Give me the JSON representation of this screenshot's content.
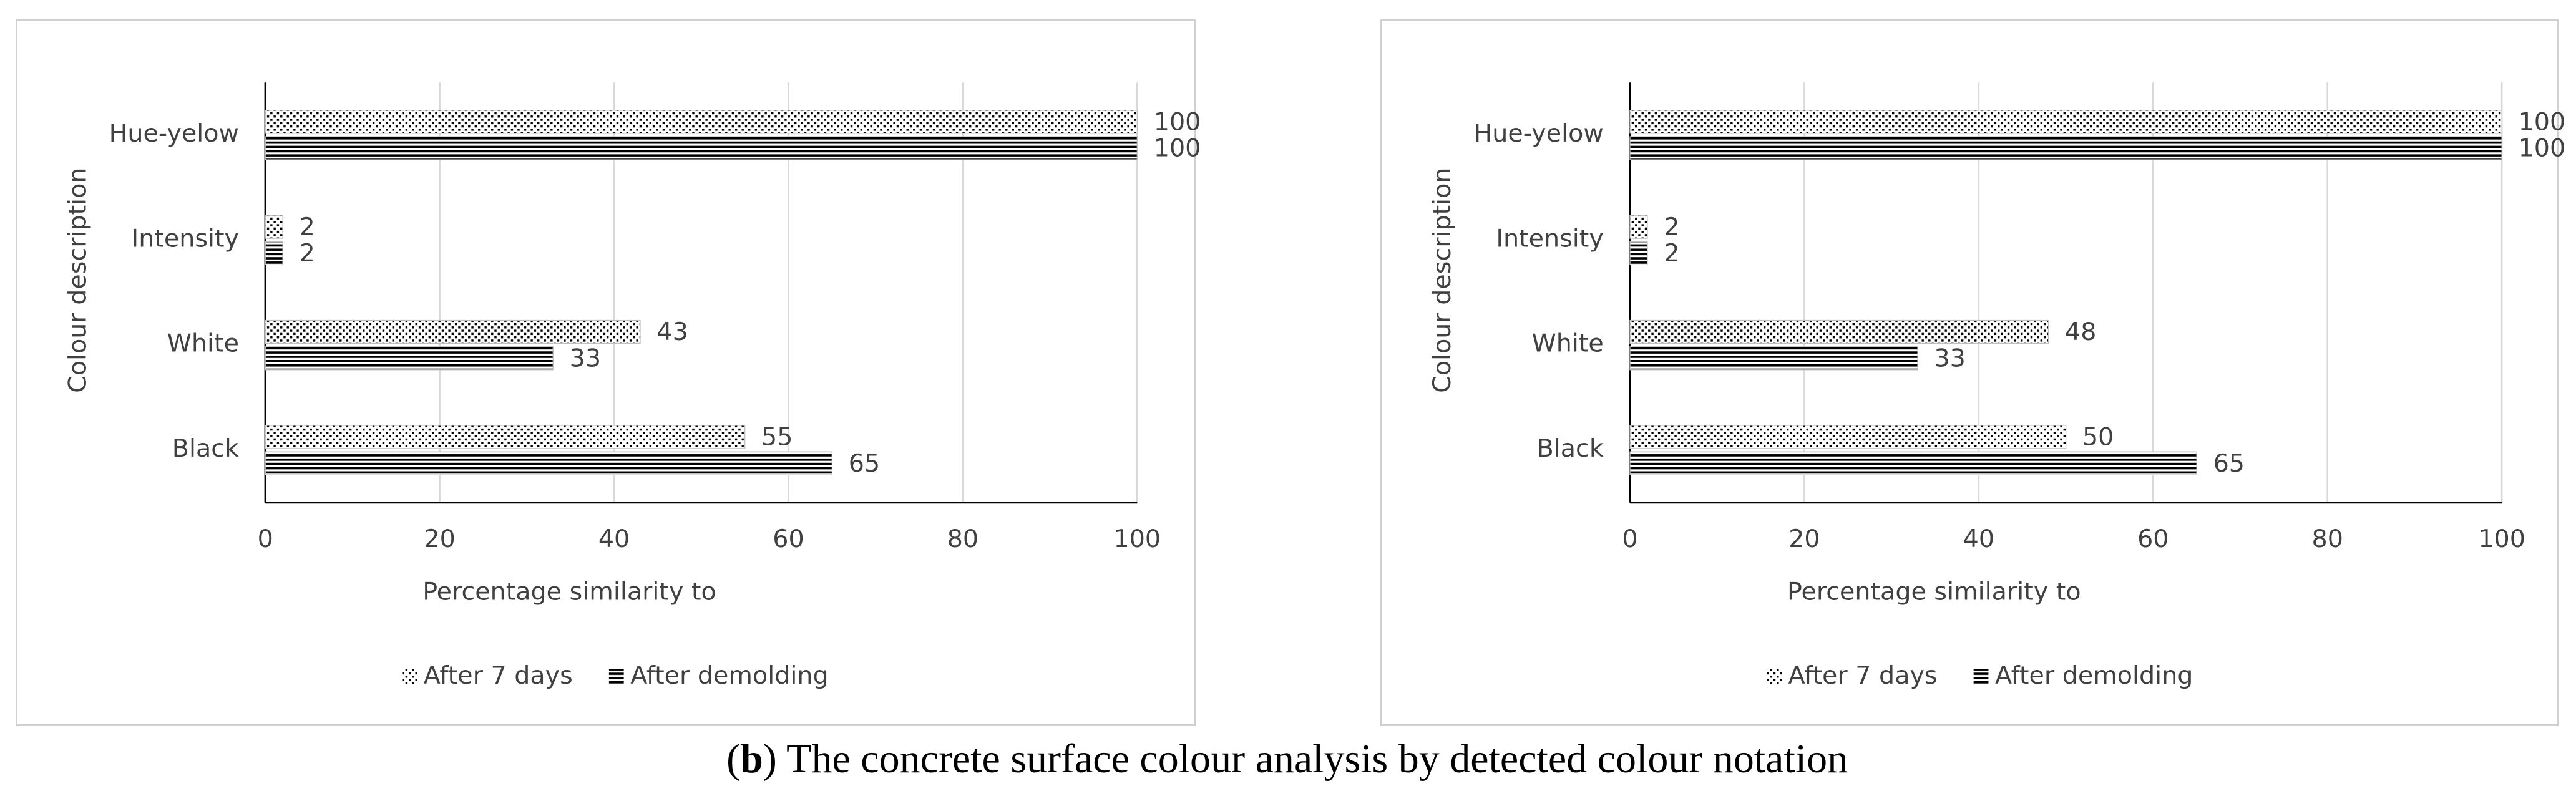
{
  "chart_data": [
    {
      "type": "bar",
      "orientation": "horizontal",
      "xlabel": "Percentage similarity to",
      "ylabel": "Colour description",
      "categories": [
        "Hue-yelow",
        "Intensity",
        "White",
        "Black"
      ],
      "series": [
        {
          "name": "After 7 days",
          "color": "#000000",
          "pattern": "dots",
          "values": [
            100,
            2,
            43,
            55
          ]
        },
        {
          "name": "After demolding",
          "color": "#000000",
          "pattern": "hlines",
          "values": [
            100,
            2,
            33,
            65
          ]
        }
      ],
      "xlim": [
        0,
        100
      ],
      "xticks": [
        0,
        20,
        40,
        60,
        80,
        100
      ],
      "grid": true,
      "legend": "bottom"
    },
    {
      "type": "bar",
      "orientation": "horizontal",
      "xlabel": "Percentage similarity to",
      "ylabel": "Colour description",
      "categories": [
        "Hue-yelow",
        "Intensity",
        "White",
        "Black"
      ],
      "series": [
        {
          "name": "After 7 days",
          "color": "#000000",
          "pattern": "dots",
          "values": [
            100,
            2,
            48,
            50
          ]
        },
        {
          "name": "After demolding",
          "color": "#000000",
          "pattern": "hlines",
          "values": [
            100,
            2,
            33,
            65
          ]
        }
      ],
      "xlim": [
        0,
        100
      ],
      "xticks": [
        0,
        20,
        40,
        60,
        80,
        100
      ],
      "grid": true,
      "legend": "bottom"
    }
  ],
  "caption": [
    {
      "text": "(",
      "bold": false
    },
    {
      "text": "b",
      "bold": true
    },
    {
      "text": ") The concrete surface colour analysis by detected colour notation",
      "bold": false
    }
  ]
}
